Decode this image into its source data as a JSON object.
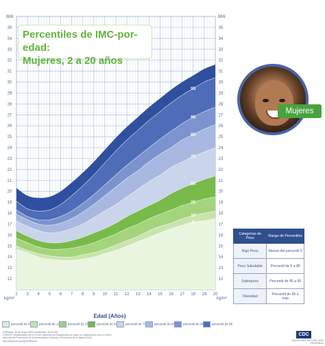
{
  "title_line1": "Percentiles de IMC-por-edad:",
  "title_line2": "Mujeres, 2 a 20 años",
  "photo_label": "Mujeres",
  "axis": {
    "x_label": "Edad (Años)",
    "y_unit_top": "BMI",
    "y_unit_bottom": "kg/m²"
  },
  "table": {
    "headers": [
      "Categorías de Peso",
      "Rango de Percentiles"
    ],
    "rows": [
      [
        "Bajo Peso",
        "Menos del percentil 5"
      ],
      [
        "Peso Saludable",
        "Percentil de 5 a 85"
      ],
      [
        "Sobrepeso",
        "Percentil de 85 a 95"
      ],
      [
        "Obesidad",
        "Percentil de 95 o más"
      ]
    ]
  },
  "legend": [
    {
      "label": "percentil de 5",
      "color": "#ddefcf"
    },
    {
      "label": "percentil de 10",
      "color": "#c4e3a7"
    },
    {
      "label": "percentil de 25",
      "color": "#9fd176"
    },
    {
      "label": "percentil de 50",
      "color": "#73b947"
    },
    {
      "label": "percentil de 75",
      "color": "#c9d3ea"
    },
    {
      "label": "percentil de 85",
      "color": "#a9b9e0"
    },
    {
      "label": "percentil de 90",
      "color": "#7b93cf"
    },
    {
      "label": "percentil de 95",
      "color": "#4e6cb8"
    }
  ],
  "footer": {
    "line1": "Publicado: 30 de mayo 2000 (modificado: 16/11/00)",
    "line2": "FUENTE: Desarrollado por el Centro Nacional de Estadísticas de Salud en colaboración con el Centro",
    "line3": "Nacional de Prevención de Enfermedades Crónicas y Promoción de la Salud (2000).",
    "line4": "http://www.cdc.gov/growthcharts"
  },
  "logo": "CDC",
  "logo_sub": "SALUD, MÁS SEGURA, MÁS PERSONAS",
  "chart_data": {
    "type": "area",
    "title": "Percentiles de IMC-por-edad: Mujeres, 2 a 20 años",
    "xlabel": "Edad (Años)",
    "ylabel": "BMI kg/m²",
    "xlim": [
      2,
      20
    ],
    "ylim": [
      10,
      36
    ],
    "x_ticks": [
      2,
      3,
      4,
      5,
      6,
      7,
      8,
      9,
      10,
      11,
      12,
      13,
      14,
      15,
      16,
      17,
      18,
      19,
      20
    ],
    "y_ticks": [
      12,
      13,
      14,
      15,
      16,
      17,
      18,
      19,
      20,
      21,
      22,
      23,
      24,
      25,
      26,
      27,
      28,
      29,
      30,
      31,
      32,
      33,
      34,
      35
    ],
    "grid": true,
    "x": [
      2,
      3,
      4,
      5,
      6,
      7,
      8,
      9,
      10,
      11,
      12,
      13,
      14,
      15,
      16,
      17,
      18,
      19,
      20
    ],
    "series": [
      {
        "name": "5",
        "values": [
          14.7,
          14.4,
          14.0,
          13.8,
          13.7,
          13.7,
          13.8,
          14.0,
          14.3,
          14.6,
          15.0,
          15.4,
          15.8,
          16.2,
          16.6,
          16.9,
          17.2,
          17.3,
          17.5
        ]
      },
      {
        "name": "10",
        "values": [
          15.0,
          14.6,
          14.3,
          14.1,
          14.0,
          14.0,
          14.2,
          14.4,
          14.7,
          15.1,
          15.5,
          15.9,
          16.4,
          16.8,
          17.1,
          17.5,
          17.8,
          18.0,
          18.2
        ]
      },
      {
        "name": "25",
        "values": [
          15.7,
          15.3,
          14.9,
          14.7,
          14.7,
          14.8,
          15.0,
          15.3,
          15.7,
          16.1,
          16.6,
          17.0,
          17.5,
          17.9,
          18.3,
          18.7,
          19.0,
          19.3,
          19.5
        ]
      },
      {
        "name": "50",
        "values": [
          16.4,
          15.9,
          15.5,
          15.3,
          15.3,
          15.5,
          15.8,
          16.2,
          16.6,
          17.1,
          17.7,
          18.2,
          18.7,
          19.2,
          19.8,
          20.3,
          20.7,
          21.1,
          21.4
        ]
      },
      {
        "name": "75",
        "values": [
          17.3,
          16.8,
          16.4,
          16.2,
          16.3,
          16.6,
          17.0,
          17.6,
          18.2,
          18.8,
          19.5,
          20.2,
          20.9,
          21.5,
          22.2,
          22.7,
          23.2,
          23.6,
          24.0
        ]
      },
      {
        "name": "85",
        "values": [
          17.9,
          17.4,
          17.0,
          16.9,
          17.1,
          17.5,
          18.1,
          18.8,
          19.6,
          20.4,
          21.2,
          21.9,
          22.7,
          23.4,
          24.0,
          24.7,
          25.2,
          25.7,
          26.1
        ]
      },
      {
        "name": "90",
        "values": [
          18.3,
          17.7,
          17.4,
          17.4,
          17.7,
          18.2,
          18.9,
          19.7,
          20.6,
          21.5,
          22.4,
          23.2,
          24.0,
          24.8,
          25.5,
          26.2,
          26.8,
          27.3,
          27.7
        ]
      },
      {
        "name": "95",
        "values": [
          19.1,
          18.4,
          18.2,
          18.3,
          18.8,
          19.6,
          20.5,
          21.5,
          22.6,
          23.7,
          24.7,
          25.6,
          26.5,
          27.3,
          28.1,
          28.8,
          29.4,
          30.0,
          30.4
        ]
      }
    ],
    "curve_labels": [
      "95",
      "90",
      "85",
      "75",
      "50",
      "25",
      "10",
      "5"
    ]
  }
}
